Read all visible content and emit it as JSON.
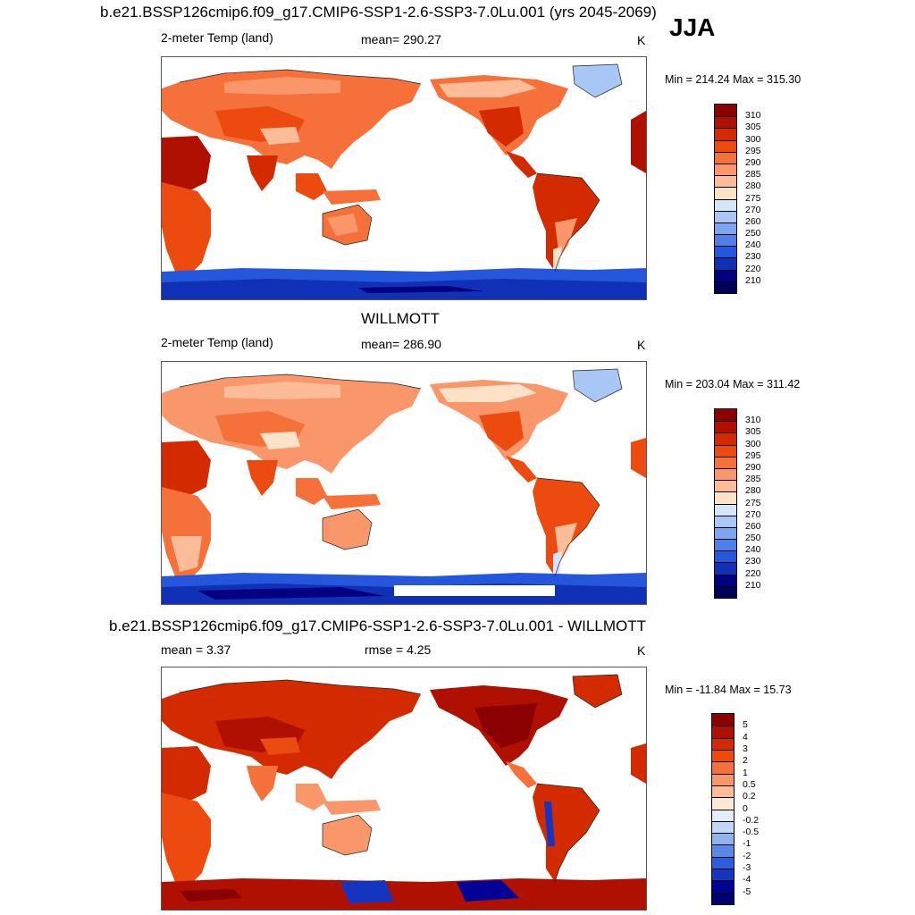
{
  "panel1": {
    "title": "b.e21.BSSP126cmip6.f09_g17.CMIP6-SSP1-2.6-SSP3-7.0Lu.001 (yrs 2045-2069)",
    "season": "JJA",
    "left_label": "2-meter Temp (land)",
    "center_label": "mean= 290.27",
    "units": "K",
    "minmax": "Min = 214.24 Max = 315.30",
    "colorbar_labels": [
      "310",
      "305",
      "300",
      "295",
      "290",
      "285",
      "280",
      "275",
      "270",
      "260",
      "250",
      "240",
      "230",
      "220",
      "210"
    ]
  },
  "panel2": {
    "title": "WILLMOTT",
    "left_label": "2-meter Temp (land)",
    "center_label": "mean= 286.90",
    "units": "K",
    "minmax": "Min = 203.04 Max = 311.42",
    "colorbar_labels": [
      "310",
      "305",
      "300",
      "295",
      "290",
      "285",
      "280",
      "275",
      "270",
      "260",
      "250",
      "240",
      "230",
      "220",
      "210"
    ]
  },
  "panel3": {
    "title": "b.e21.BSSP126cmip6.f09_g17.CMIP6-SSP1-2.6-SSP3-7.0Lu.001 - WILLMOTT",
    "left_label": "mean =   3.37",
    "center_label": "rmse =   4.25",
    "units": "K",
    "minmax": "Min = -11.84 Max =  15.73",
    "colorbar_labels": [
      "5",
      "4",
      "3",
      "2",
      "1",
      "0.5",
      "0.2",
      "0",
      "-0.2",
      "-0.5",
      "-1",
      "-2",
      "-3",
      "-4",
      "-5"
    ]
  },
  "colors": {
    "abs_scale": [
      "#8b0000",
      "#b01000",
      "#d42a00",
      "#ec4a0e",
      "#f6703a",
      "#f9976a",
      "#fcbc98",
      "#fde2c8",
      "#d5e6fb",
      "#a8c7f5",
      "#7ea5ef",
      "#4f7fe8",
      "#2457db",
      "#1030b5",
      "#000080",
      "#00005a"
    ],
    "diff_scale": [
      "#8b0000",
      "#b01000",
      "#d42a00",
      "#ec4a0e",
      "#f6703a",
      "#f9976a",
      "#fcbc98",
      "#fde8d6",
      "#e3eefc",
      "#c1d7f8",
      "#8fb3f1",
      "#5a88e8",
      "#2d5ddc",
      "#1535c0",
      "#000098",
      "#000070"
    ]
  }
}
